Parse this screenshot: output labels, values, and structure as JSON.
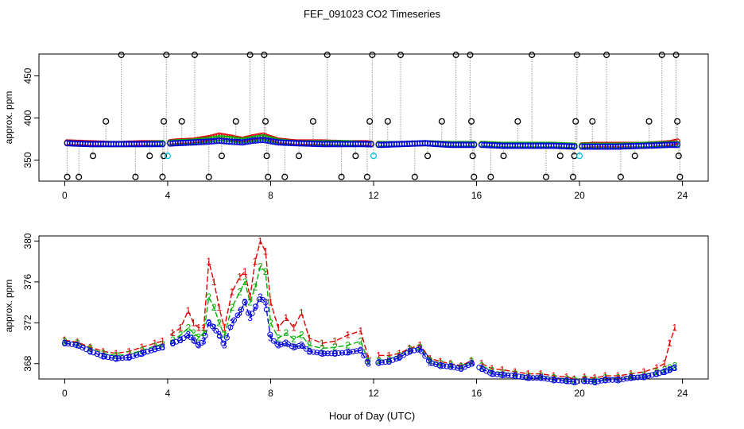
{
  "title": "FEF_091023  CO2 Timeseries",
  "xlabel": "Hour of Day (UTC)",
  "colors": {
    "axis": "#000000",
    "c1": "#e00000",
    "c2": "#00b000",
    "c3": "#0000e0",
    "c4": "#00c8e0",
    "guide": "#999999"
  },
  "chart_data": [
    {
      "id": "top",
      "type": "scatter",
      "ylabel": "approx. ppm",
      "xlim": [
        -1,
        25
      ],
      "ylim": [
        325,
        476
      ],
      "xticks": [
        0,
        4,
        8,
        12,
        16,
        20,
        24
      ],
      "yticks": [
        350,
        400,
        450
      ],
      "base_series": [
        {
          "name": "series 1",
          "symbol": "o",
          "color_key": "c1",
          "x": [
            0.1,
            1.0,
            2.0,
            3.0,
            3.8,
            4.3,
            5.0,
            5.6,
            6.0,
            6.4,
            6.9,
            7.3,
            7.7,
            8.3,
            9.0,
            10.0,
            11.0,
            11.7,
            12.3,
            13.0,
            14.0,
            15.0,
            15.6,
            16.3,
            17.0,
            18.0,
            19.0,
            19.8,
            20.5,
            21.5,
            22.5,
            23.5,
            23.8
          ],
          "y": [
            371,
            370,
            369,
            370,
            370,
            372,
            373,
            376,
            379,
            377,
            374,
            377,
            379,
            373,
            371,
            371,
            370,
            370,
            369,
            369,
            370,
            369,
            369,
            369,
            368,
            368,
            368,
            367,
            368,
            368,
            368,
            370,
            372
          ]
        },
        {
          "name": "series 2",
          "symbol": "o",
          "color_key": "c2",
          "x": [
            0.1,
            1.0,
            2.0,
            3.0,
            3.8,
            4.3,
            5.0,
            5.6,
            6.0,
            6.4,
            6.9,
            7.3,
            7.7,
            8.3,
            9.0,
            10.0,
            11.0,
            11.7,
            12.3,
            13.0,
            14.0,
            15.0,
            15.6,
            16.3,
            17.0,
            18.0,
            19.0,
            19.8,
            20.5,
            21.5,
            22.5,
            23.5,
            23.8
          ],
          "y": [
            370,
            369,
            369,
            369,
            370,
            371,
            372,
            374,
            376,
            375,
            373,
            375,
            377,
            372,
            370,
            370,
            370,
            369,
            369,
            369,
            370,
            369,
            369,
            369,
            368,
            368,
            368,
            367,
            367,
            367,
            368,
            369,
            369
          ]
        },
        {
          "name": "series 3",
          "symbol": "o",
          "color_key": "c3",
          "x": [
            0.1,
            1.0,
            2.0,
            3.0,
            3.8,
            4.3,
            5.0,
            5.6,
            6.0,
            6.4,
            6.9,
            7.3,
            7.7,
            8.3,
            9.0,
            10.0,
            11.0,
            11.7,
            12.3,
            13.0,
            14.0,
            15.0,
            15.6,
            16.3,
            17.0,
            18.0,
            19.0,
            19.8,
            20.5,
            21.5,
            22.5,
            23.5,
            23.8
          ],
          "y": [
            370,
            369,
            369,
            369,
            369,
            370,
            371,
            372,
            373,
            372,
            371,
            373,
            374,
            371,
            370,
            369,
            369,
            369,
            368,
            369,
            370,
            368,
            368,
            368,
            367,
            367,
            367,
            366,
            366,
            366,
            367,
            368,
            368
          ]
        }
      ],
      "outliers": [
        {
          "x": 0.1,
          "y": 330,
          "color_key": "axis"
        },
        {
          "x": 0.55,
          "y": 330,
          "color_key": "axis"
        },
        {
          "x": 1.1,
          "y": 355,
          "color_key": "axis"
        },
        {
          "x": 1.6,
          "y": 396,
          "color_key": "axis"
        },
        {
          "x": 2.2,
          "y": 475,
          "color_key": "axis"
        },
        {
          "x": 2.75,
          "y": 330,
          "color_key": "axis"
        },
        {
          "x": 3.3,
          "y": 355,
          "color_key": "axis"
        },
        {
          "x": 3.8,
          "y": 330,
          "color_key": "axis"
        },
        {
          "x": 3.85,
          "y": 355,
          "color_key": "axis"
        },
        {
          "x": 3.85,
          "y": 396,
          "color_key": "axis"
        },
        {
          "x": 3.95,
          "y": 475,
          "color_key": "axis"
        },
        {
          "x": 4.0,
          "y": 355,
          "color_key": "c4"
        },
        {
          "x": 4.55,
          "y": 396,
          "color_key": "axis"
        },
        {
          "x": 5.05,
          "y": 475,
          "color_key": "axis"
        },
        {
          "x": 5.6,
          "y": 330,
          "color_key": "axis"
        },
        {
          "x": 6.1,
          "y": 355,
          "color_key": "axis"
        },
        {
          "x": 6.65,
          "y": 396,
          "color_key": "axis"
        },
        {
          "x": 7.2,
          "y": 475,
          "color_key": "axis"
        },
        {
          "x": 7.75,
          "y": 475,
          "color_key": "axis"
        },
        {
          "x": 7.8,
          "y": 396,
          "color_key": "axis"
        },
        {
          "x": 7.85,
          "y": 355,
          "color_key": "axis"
        },
        {
          "x": 7.9,
          "y": 330,
          "color_key": "axis"
        },
        {
          "x": 8.55,
          "y": 330,
          "color_key": "axis"
        },
        {
          "x": 9.1,
          "y": 355,
          "color_key": "axis"
        },
        {
          "x": 9.65,
          "y": 396,
          "color_key": "axis"
        },
        {
          "x": 10.2,
          "y": 475,
          "color_key": "axis"
        },
        {
          "x": 10.75,
          "y": 330,
          "color_key": "axis"
        },
        {
          "x": 11.3,
          "y": 355,
          "color_key": "axis"
        },
        {
          "x": 11.75,
          "y": 330,
          "color_key": "axis"
        },
        {
          "x": 11.85,
          "y": 396,
          "color_key": "axis"
        },
        {
          "x": 11.95,
          "y": 475,
          "color_key": "axis"
        },
        {
          "x": 12.0,
          "y": 355,
          "color_key": "c4"
        },
        {
          "x": 12.55,
          "y": 396,
          "color_key": "axis"
        },
        {
          "x": 13.05,
          "y": 475,
          "color_key": "axis"
        },
        {
          "x": 13.6,
          "y": 330,
          "color_key": "axis"
        },
        {
          "x": 14.1,
          "y": 355,
          "color_key": "axis"
        },
        {
          "x": 14.65,
          "y": 396,
          "color_key": "axis"
        },
        {
          "x": 15.2,
          "y": 475,
          "color_key": "axis"
        },
        {
          "x": 15.75,
          "y": 475,
          "color_key": "axis"
        },
        {
          "x": 15.8,
          "y": 396,
          "color_key": "axis"
        },
        {
          "x": 15.85,
          "y": 355,
          "color_key": "axis"
        },
        {
          "x": 15.9,
          "y": 330,
          "color_key": "axis"
        },
        {
          "x": 16.55,
          "y": 330,
          "color_key": "axis"
        },
        {
          "x": 17.05,
          "y": 355,
          "color_key": "axis"
        },
        {
          "x": 17.6,
          "y": 396,
          "color_key": "axis"
        },
        {
          "x": 18.15,
          "y": 475,
          "color_key": "axis"
        },
        {
          "x": 18.7,
          "y": 330,
          "color_key": "axis"
        },
        {
          "x": 19.25,
          "y": 355,
          "color_key": "axis"
        },
        {
          "x": 19.75,
          "y": 330,
          "color_key": "axis"
        },
        {
          "x": 19.8,
          "y": 355,
          "color_key": "axis"
        },
        {
          "x": 19.85,
          "y": 396,
          "color_key": "axis"
        },
        {
          "x": 19.9,
          "y": 475,
          "color_key": "axis"
        },
        {
          "x": 20.0,
          "y": 355,
          "color_key": "c4"
        },
        {
          "x": 20.5,
          "y": 396,
          "color_key": "axis"
        },
        {
          "x": 21.05,
          "y": 475,
          "color_key": "axis"
        },
        {
          "x": 21.6,
          "y": 330,
          "color_key": "axis"
        },
        {
          "x": 22.15,
          "y": 355,
          "color_key": "axis"
        },
        {
          "x": 22.7,
          "y": 396,
          "color_key": "axis"
        },
        {
          "x": 23.2,
          "y": 475,
          "color_key": "axis"
        },
        {
          "x": 23.75,
          "y": 475,
          "color_key": "axis"
        },
        {
          "x": 23.8,
          "y": 396,
          "color_key": "axis"
        },
        {
          "x": 23.85,
          "y": 355,
          "color_key": "axis"
        },
        {
          "x": 23.9,
          "y": 330,
          "color_key": "axis"
        }
      ]
    },
    {
      "id": "bottom",
      "type": "line",
      "ylabel": "approx. ppm",
      "xlim": [
        -1,
        25
      ],
      "ylim": [
        366.5,
        380.5
      ],
      "xticks": [
        0,
        4,
        8,
        12,
        16,
        20,
        24
      ],
      "yticks": [
        368,
        372,
        376,
        380
      ],
      "series": [
        {
          "name": "1",
          "symbol": "1",
          "color_key": "c1",
          "x": [
            0,
            0.5,
            1,
            1.5,
            2,
            2.5,
            3,
            3.5,
            3.8,
            4.2,
            4.5,
            4.8,
            5.0,
            5.2,
            5.4,
            5.6,
            5.8,
            6.0,
            6.2,
            6.5,
            6.8,
            7.0,
            7.2,
            7.4,
            7.6,
            7.8,
            8.0,
            8.3,
            8.6,
            8.9,
            9.2,
            9.5,
            10,
            10.5,
            11,
            11.5,
            11.8,
            12.2,
            12.6,
            13,
            13.4,
            13.8,
            14.2,
            14.6,
            15,
            15.4,
            15.8,
            16.2,
            16.6,
            17,
            17.5,
            18,
            18.5,
            19,
            19.5,
            19.8,
            20.2,
            20.6,
            21,
            21.5,
            22,
            22.5,
            23,
            23.3,
            23.5,
            23.7
          ],
          "y": [
            370.3,
            370.1,
            369.6,
            369.2,
            369.0,
            369.2,
            369.6,
            370.0,
            370.2,
            371.0,
            371.5,
            373.2,
            372.0,
            371.5,
            371.5,
            378.0,
            376.0,
            373.5,
            371.5,
            375.0,
            376.5,
            377.0,
            374.5,
            378.0,
            380.0,
            379.0,
            374.0,
            371.5,
            372.5,
            371.5,
            373.0,
            370.5,
            370.0,
            370.2,
            370.8,
            371.2,
            368.5,
            368.8,
            368.8,
            369.0,
            369.5,
            369.8,
            368.5,
            368.2,
            368.0,
            367.8,
            368.3,
            368.0,
            367.5,
            367.4,
            367.2,
            367.0,
            367.0,
            366.8,
            366.7,
            366.5,
            366.7,
            366.6,
            366.8,
            366.8,
            367.0,
            367.2,
            367.6,
            368.0,
            370.0,
            371.5
          ]
        },
        {
          "name": "2",
          "symbol": "2",
          "color_key": "c2",
          "x": [
            0,
            0.5,
            1,
            1.5,
            2,
            2.5,
            3,
            3.5,
            3.8,
            4.2,
            4.5,
            4.8,
            5.0,
            5.2,
            5.4,
            5.6,
            5.8,
            6.0,
            6.2,
            6.5,
            6.8,
            7.0,
            7.2,
            7.4,
            7.6,
            7.8,
            8.0,
            8.3,
            8.6,
            8.9,
            9.2,
            9.5,
            10,
            10.5,
            11,
            11.5,
            11.8,
            12.2,
            12.6,
            13,
            13.4,
            13.8,
            14.2,
            14.6,
            15,
            15.4,
            15.8,
            16.2,
            16.6,
            17,
            17.5,
            18,
            18.5,
            19,
            19.5,
            19.8,
            20.2,
            20.6,
            21,
            21.5,
            22,
            22.5,
            23,
            23.3,
            23.5,
            23.7
          ],
          "y": [
            370.2,
            370.0,
            369.5,
            369.0,
            368.8,
            368.9,
            369.3,
            369.7,
            369.9,
            370.3,
            370.8,
            371.5,
            371.0,
            370.6,
            371.0,
            374.5,
            373.5,
            372.0,
            370.8,
            373.5,
            375.0,
            376.0,
            374.0,
            375.5,
            377.5,
            377.0,
            372.0,
            370.5,
            371.0,
            370.4,
            370.8,
            369.8,
            369.5,
            369.6,
            369.8,
            370.2,
            368.2,
            368.3,
            368.4,
            368.8,
            369.4,
            369.6,
            368.3,
            368.0,
            367.9,
            367.7,
            368.2,
            367.8,
            367.3,
            367.1,
            367.0,
            366.8,
            366.8,
            366.6,
            366.5,
            366.4,
            366.5,
            366.4,
            366.6,
            366.6,
            366.8,
            366.9,
            367.2,
            367.4,
            367.6,
            367.8
          ]
        },
        {
          "name": "3",
          "symbol": "3",
          "color_key": "c3",
          "x": [
            0,
            0.5,
            1,
            1.5,
            2,
            2.5,
            3,
            3.5,
            3.8,
            4.2,
            4.5,
            4.8,
            5.0,
            5.2,
            5.4,
            5.6,
            5.8,
            6.0,
            6.2,
            6.5,
            6.8,
            7.0,
            7.2,
            7.4,
            7.6,
            7.8,
            8.0,
            8.3,
            8.6,
            8.9,
            9.2,
            9.5,
            10,
            10.5,
            11,
            11.5,
            11.8,
            12.2,
            12.6,
            13,
            13.4,
            13.8,
            14.2,
            14.6,
            15,
            15.4,
            15.8,
            16.2,
            16.6,
            17,
            17.5,
            18,
            18.5,
            19,
            19.5,
            19.8,
            20.2,
            20.6,
            21,
            21.5,
            22,
            22.5,
            23,
            23.3,
            23.5,
            23.7
          ],
          "y": [
            370.0,
            369.8,
            369.2,
            368.7,
            368.5,
            368.6,
            369.0,
            369.4,
            369.6,
            370.0,
            370.3,
            370.8,
            370.3,
            369.8,
            370.2,
            372.0,
            371.5,
            370.8,
            369.8,
            372.0,
            373.0,
            374.0,
            372.5,
            373.5,
            374.5,
            374.0,
            370.5,
            369.8,
            370.0,
            369.6,
            369.8,
            369.2,
            369.0,
            369.0,
            369.1,
            369.3,
            368.0,
            368.1,
            368.2,
            368.6,
            369.2,
            369.4,
            368.1,
            367.8,
            367.7,
            367.5,
            368.0,
            367.5,
            367.0,
            366.9,
            366.8,
            366.6,
            366.6,
            366.4,
            366.3,
            366.2,
            366.3,
            366.2,
            366.4,
            366.4,
            366.6,
            366.7,
            367.0,
            367.2,
            367.4,
            367.6
          ]
        }
      ]
    }
  ]
}
